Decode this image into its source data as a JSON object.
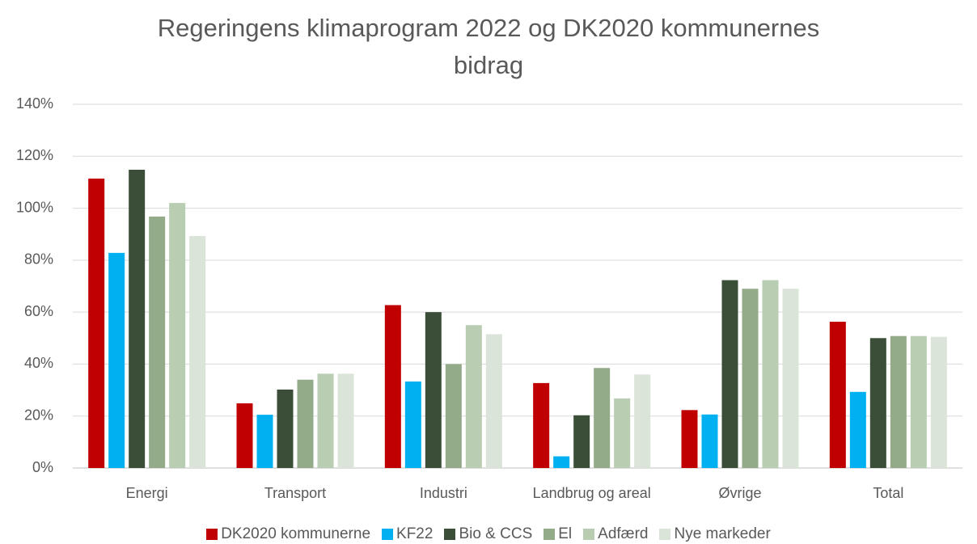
{
  "chart_data": {
    "type": "bar",
    "title": "Regeringens klimaprogram 2022 og DK2020 kommunernes bidrag",
    "categories": [
      "Energi",
      "Transport",
      "Industri",
      "Landbrug og areal",
      "Øvrige",
      "Total"
    ],
    "series": [
      {
        "name": "DK2020 kommunerne",
        "color": "#c00000",
        "values": [
          111.4,
          24.9,
          62.7,
          32.7,
          22.3,
          56.3
        ]
      },
      {
        "name": "KF22",
        "color": "#00b0f0",
        "values": [
          82.8,
          20.5,
          33.3,
          4.5,
          20.6,
          29.3
        ]
      },
      {
        "name": "Bio & CCS",
        "color": "#3b4f38",
        "values": [
          114.8,
          30.2,
          60,
          20.3,
          72.3,
          50
        ]
      },
      {
        "name": "El",
        "color": "#93ab88",
        "values": [
          96.8,
          34,
          40,
          38.5,
          69,
          50.8
        ]
      },
      {
        "name": "Adfærd",
        "color": "#b9cdb2",
        "values": [
          102,
          36.3,
          55,
          26.8,
          72.3,
          50.8
        ]
      },
      {
        "name": "Nye markeder",
        "color": "#dbe4d8",
        "values": [
          89.3,
          36.3,
          51.5,
          36,
          69,
          50.5
        ]
      }
    ],
    "ylim": [
      0,
      140
    ],
    "yticks": [
      {
        "value": 0,
        "label": "0%"
      },
      {
        "value": 20,
        "label": "20%"
      },
      {
        "value": 40,
        "label": "40%"
      },
      {
        "value": 60,
        "label": "60%"
      },
      {
        "value": 80,
        "label": "80%"
      },
      {
        "value": 100,
        "label": "100%"
      },
      {
        "value": 120,
        "label": "120%"
      },
      {
        "value": 140,
        "label": "140%"
      }
    ],
    "grid": true
  }
}
